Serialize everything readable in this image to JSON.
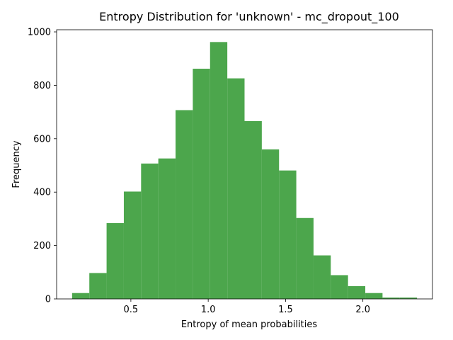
{
  "chart_data": {
    "type": "bar",
    "title": "Entropy Distribution for 'unknown' - mc_dropout_100",
    "xlabel": "Entropy of mean probabilities",
    "ylabel": "Frequency",
    "bar_color": "#4ca64c",
    "bin_edges": [
      0.12,
      0.2315,
      0.343,
      0.4545,
      0.566,
      0.6775,
      0.789,
      0.9005,
      1.012,
      1.1235,
      1.235,
      1.3465,
      1.458,
      1.5695,
      1.681,
      1.7925,
      1.904,
      2.0155,
      2.127,
      2.2385,
      2.35
    ],
    "values": [
      22,
      97,
      284,
      402,
      507,
      526,
      707,
      862,
      962,
      826,
      666,
      560,
      481,
      303,
      163,
      89,
      48,
      22,
      5,
      5
    ],
    "xlim": [
      0.02,
      2.45
    ],
    "ylim": [
      0,
      1008
    ],
    "xticks": [
      0.5,
      1.0,
      1.5,
      2.0
    ],
    "xtick_labels": [
      "0.5",
      "1.0",
      "1.5",
      "2.0"
    ],
    "yticks": [
      0,
      200,
      400,
      600,
      800,
      1000
    ],
    "ytick_labels": [
      "0",
      "200",
      "400",
      "600",
      "800",
      "1000"
    ]
  }
}
